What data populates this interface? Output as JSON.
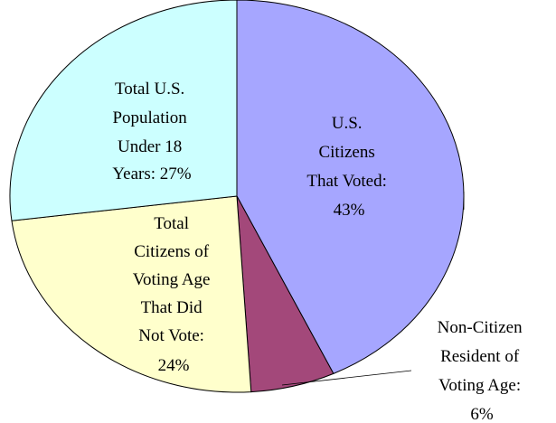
{
  "chart_data": {
    "type": "pie",
    "slices": [
      {
        "lines": [
          "U.S.",
          "Citizens",
          "That Voted:",
          "43%"
        ],
        "value": 43,
        "color": "#a6a6ff"
      },
      {
        "lines": [
          "Non-Citizen",
          "Resident of",
          "Voting Age:",
          "6%"
        ],
        "value": 6,
        "color": "#a3487a"
      },
      {
        "lines": [
          "Total",
          "Citizens of",
          "Voting Age",
          "That Did",
          "Not Vote:",
          "24%"
        ],
        "value": 24,
        "color": "#ffffcc"
      },
      {
        "lines": [
          "Total U.S.",
          "Population",
          "Under 18",
          "Years: 27%"
        ],
        "value": 27,
        "color": "#ccffff"
      }
    ],
    "legend": "none"
  }
}
